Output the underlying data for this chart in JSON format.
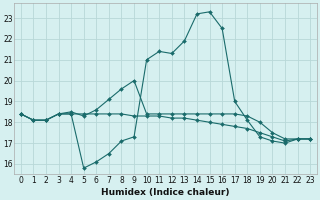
{
  "xlabel": "Humidex (Indice chaleur)",
  "xlim": [
    -0.5,
    23.5
  ],
  "ylim": [
    15.5,
    23.7
  ],
  "yticks": [
    16,
    17,
    18,
    19,
    20,
    21,
    22,
    23
  ],
  "xticks": [
    0,
    1,
    2,
    3,
    4,
    5,
    6,
    7,
    8,
    9,
    10,
    11,
    12,
    13,
    14,
    15,
    16,
    17,
    18,
    19,
    20,
    21,
    22,
    23
  ],
  "background_color": "#d6f0f0",
  "grid_color": "#b8d8d8",
  "line_color": "#1a6b6b",
  "series": [
    {
      "x": [
        0,
        1,
        2,
        3,
        4,
        5,
        6,
        7,
        8,
        9,
        10,
        11,
        12,
        13,
        14,
        15,
        16,
        17,
        18,
        19,
        20,
        21,
        22,
        23
      ],
      "y": [
        18.4,
        18.1,
        18.1,
        18.4,
        18.4,
        15.8,
        16.1,
        16.5,
        17.1,
        17.3,
        21.0,
        21.4,
        21.3,
        21.9,
        23.2,
        23.3,
        22.5,
        19.0,
        18.1,
        17.3,
        17.1,
        17.0,
        17.2,
        17.2
      ]
    },
    {
      "x": [
        0,
        1,
        2,
        3,
        4,
        5,
        6,
        7,
        8,
        9,
        10,
        11,
        12,
        13,
        14,
        15,
        16,
        17,
        18,
        19,
        20,
        21,
        22,
        23
      ],
      "y": [
        18.4,
        18.1,
        18.1,
        18.4,
        18.5,
        18.3,
        18.6,
        19.1,
        19.6,
        20.0,
        18.4,
        18.4,
        18.4,
        18.4,
        18.4,
        18.4,
        18.4,
        18.4,
        18.3,
        18.0,
        17.5,
        17.2,
        17.2,
        17.2
      ]
    },
    {
      "x": [
        0,
        1,
        2,
        3,
        4,
        5,
        6,
        7,
        8,
        9,
        10,
        11,
        12,
        13,
        14,
        15,
        16,
        17,
        18,
        19,
        20,
        21,
        22,
        23
      ],
      "y": [
        18.4,
        18.1,
        18.1,
        18.4,
        18.4,
        18.4,
        18.4,
        18.4,
        18.4,
        18.3,
        18.3,
        18.3,
        18.2,
        18.2,
        18.1,
        18.0,
        17.9,
        17.8,
        17.7,
        17.5,
        17.3,
        17.1,
        17.2,
        17.2
      ]
    }
  ]
}
